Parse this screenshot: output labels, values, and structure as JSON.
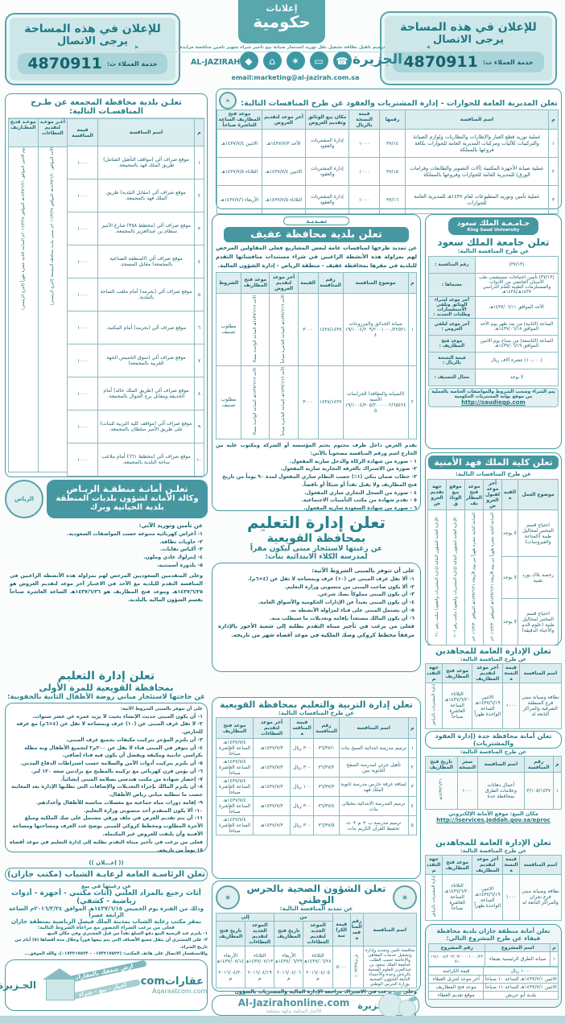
{
  "colors": {
    "accent": "#27818b",
    "teal_fill": "#4697a0",
    "light_teal": "#cde7e9",
    "header_cell": "#dcedef"
  },
  "header": {
    "ad_left": {
      "line1": "للإعلان في هذه المساحة",
      "line2": "يرجى الاتصال",
      "service": "خدمة العملاء ت:",
      "phone": "4870911"
    },
    "ad_right": {
      "line1": "للإعلان في هذه المساحة",
      "line2": "يرجى الاتصال",
      "service": "خدمة العملاء ت:",
      "phone": "4870911"
    },
    "gov_logo": {
      "top": "إعلانات",
      "bottom": "حكومية"
    },
    "services_strip": "ترميم تأهيل نظافة تشغيل نقل توريد استثمار صيانة   بيع تأجير شراء تجهيز تأمين مناقصة مزايدة",
    "email": "email:marketing@al-jazirah.com.sa",
    "brand_en": "AL-JAZIRAH",
    "brand_ar": "الجزيرة"
  },
  "passports": {
    "title": "تعلن المديرية العامة للجوازات - إدارة المشتريات والعقود عن طرح المنافسات التالية:",
    "headers": [
      "م",
      "اسم المنافسة",
      "رقمها",
      "قيمة النسخة بالريال",
      "مكان بيع الوثائق وتقديم العروض",
      "آخر موعد لتقديم العروض",
      "موعد فتح المظاريف الساعة العاشرة صباحاً"
    ],
    "rows": [
      {
        "no": "١",
        "name": "عملية توريد قطع الغيار والإطارات والبطاريات ولوازم الصيانة والتركيبات للآليات ومركبات المديرية العامة للجوازات بكافة فروعها بالمملكة",
        "num": "٣٧/١٤",
        "price": "١٠٠٠",
        "place": "إدارة المشتريات والعقود",
        "deadline": "الأحد ١٤٣٧/٧/٣هـ",
        "opening": "الاثنين ١٤٣٧/٧/٤هـ"
      },
      {
        "no": "٢",
        "name": "عملية صيانة الأجهزة المكتبية (آلات التصوير والطابعات وفرامات الورق) للمديرية العامة للجوازات وفروعها بالمملكة",
        "num": "٣٧/١٥",
        "price": "١٠٠٠",
        "place": "إدارة المشتريات والعقود",
        "deadline": "الاثنين ١٤٣٧/٧/٤هـ",
        "opening": "الثلاثاء ١٤٣٧/٧/٥هـ"
      },
      {
        "no": "٣",
        "name": "عملية تأمين وتوريد المطبوعات لعام ١٤٣٧هـ للمديرية العامة للجوازات",
        "num": "٣٧/١٦",
        "price": "١٠٠٠",
        "place": "إدارة المشتريات والعقود",
        "deadline": "الثلاثاء ١٤٣٧/٧/٥هـ",
        "opening": "الأربعاء ١٤٣٧/٧/٦هـ"
      }
    ]
  },
  "majmaah": {
    "title": "تعلـن بلدية محافظة المجمعة عن طـرح المنافسـات التالية:",
    "headers": [
      "م",
      "اسم المنافسة",
      "قيمة المنافسة",
      "آخـر موعـد لتقديم العطاءات",
      "موعـد فتـح المظـاريف"
    ],
    "rows": [
      {
        "no": "١",
        "name": "موقع صراف آلي (مواقف التأهيل الشامل) طريق الملك فهد بالمجمعة.",
        "price": "١٠٠٠"
      },
      {
        "no": "٢",
        "name": "موقع صراف آلي (مقابل البلدية) طريق الملك فهد بالمجمعة.",
        "price": "١٠٠٠"
      },
      {
        "no": "٣",
        "name": "موقع صراف آلي (مخطط ٣٥٨) شارع الأمير سطام بن عبدالعزيز بالمجمعة.",
        "price": "١٠٠٠"
      },
      {
        "no": "٤",
        "name": "موقع صراف آلي (المنطقة الصناعية بالمجمعة) مقابل المسجد.",
        "price": "١٠٠٠"
      },
      {
        "no": "٥",
        "name": "موقع صراف آلي (بحرمه) أمام ملعب الساحة بالبلدية.",
        "price": "١٠٠٠"
      },
      {
        "no": "٦",
        "name": "موقع صراف آلي (بحرمه) أمام المكتبة.",
        "price": "١٠٠٠"
      },
      {
        "no": "٧",
        "name": "موقع صراف آلي (سوق الخميس الجهة الغربية بالمجمعة)",
        "price": "١٠٠٠"
      },
      {
        "no": "٨",
        "name": "موقع صراف آلي (طريق الملك خالد) أمام الحديقة ومقابل برج الجوال بالمجمعة.",
        "price": "١٠٠٠"
      },
      {
        "no": "٩",
        "name": "موقع صراف آلي (مواقف كلية التربية للبنات) على طريق الأمير سلطان بالمجمعة.",
        "price": "١٠٠٠"
      },
      {
        "no": "١٠",
        "name": "موقع صراف آلي (مخطط ٦٦١) أمام ملاعب ساحة البلدية بالمجمعة.",
        "price": "١٠٠٠"
      }
    ],
    "deadline_note": "الأحد الموافق ١٤٣٧/٦/٢٠هـ الموافق ٢٠١٦/٣/٢٧م بمبنى بلدية محافظة المجمعة (البرج الرئيسي)",
    "opening_note": "يوم الاثنين الموافق ١٤٣٧/٦/٢١هـ الموافق ٢٠١٦/٣/٢٨م الساعة الثانية عشرة ظهراً (البرج الرئيسي)"
  },
  "riyadh": {
    "title1": "تعلـن أمانـة منطقـة الريـاض",
    "title2": "وكالة الأمانة لشؤون بلديات المنطقة",
    "title3": "بلدية الحيانية وبرك",
    "logo_text": "الرياض",
    "intro": "عن تأمين وتوريد الآتي:",
    "items": [
      "١- أغراض كهربائية متنوعة حسب المواصفات السعودية.",
      "٢- حاويات نظافة.",
      "٣- أكياس نفايات.",
      "٤- إنترلوك عادي وملون.",
      "٥- بلدورة أسمنتية."
    ],
    "footer": "وعلى المتقدمين السعوديين المرخص لهم بمزاولة هذه الأنشطة الراغبين في المنافسة التقدم للبلدية مع الأخذ في الاعتبار آخر موعد لتقديم العروض هو ١٤٣٧/٦/٢٥هـ وموعد فتح المظاريف هو ١٤٣٧/٦/٢٦هـ الساعة العاشرة صباحاً بقسم الشؤون المالية بالبلدية."
  },
  "edu_first": {
    "title1": "تعلن إدارة التعليم",
    "title2": "بمحافظة القويعية للمرة الأولى",
    "sub": "عن حاجتها لاستئجار مباني روضة الأطفال الثانية بالجفونية:",
    "intro": "على أن تتوفر بالمبنى الشروط الآتية:",
    "items": [
      "١- أن يكون المبنى حديث الإنشاء بحيث لا يزيد عمره عن عشر سنوات.",
      "٢- لا تقل غرف المبنى عن (١٠) غرف وبمساحة لا تقل عن (٤×٦م) مع غرفة للحارس.",
      "٣- أن يلتزم المؤجر بتركيب مكيفات بجميع غرف المبنى.",
      "٤- أن يتوفر في المبنى فناء لا يقل عن ٢٠٠م٢ لتجميع الأطفال وبه مظلة بكراسي جانبية ومكيفة ويفضل أن يكون فيه فناء إضافي.",
      "٥- أن يلتزم بتركيب أدوات الأمن والسلامة حسب اشتراطات الدفاع المدني.",
      "٦- أن يؤمن فرن كهربائي مع تركيبه بالمطبخ مع برادتين سعة ١٢٠ لتر.",
      "٧- إحضار شهادة من مكتب هندسي بسلامة المبنى إنشائياً.",
      "٨- أن يلتزم المالك بإجراء التعديلات والإضافات التي تطلبها الإدارة بعد المعاينة حسب ما تتطلبه مباني رياض الأطفال.",
      "٩- إقامة دورات مياه جماعية مع مغسلات مناسبة للأطفال وأعدادهم.",
      "١٠- ألا يكون المتقدم أحد منسوبي وزارة التعليم.",
      "١١- أن يتم تقديم العرض في ملف ورقي مشتمل على صك الملكية ومبلغ الأجرة المطلوب ومخطط كروكي للمبنى يوضح عدد الغرف ومساحتها ومساحة الأفنية وأن يلتفت للعروض غير المكتملة."
    ],
    "footer": "فعلى من يرغب في تأجير مبناه التقدم بطلبه إلى إدارة التعليم في موعد أقصاه ١٥ يوماً من تاريخه."
  },
  "i3lan": "(( إعـــلان ))",
  "youth": {
    "title": "تعلن الرئاسـة العامة لرعايـة الشباب (مكتب جازان)",
    "sub": "عن رغبتها في بيع",
    "big": "أثاث رجيع بالمزاد العلني (أثاث مكتبي - أجهزة - أدوات رياضية - كشفي)",
    "line1": "وذلك من الفترة يوم الخميس ١٤٣٧/٦/١٥هـ الموافق ٢٠١٦/٣/٢٤م الساعة الرابعة عصراً",
    "line2": "بمقر مكتب رعاية الشباب بمدينة الملك فيصل الرياضية بمنطقة جازان",
    "line3": "فعلى من يرغب الشراء الحضور مع مراعاة الشروط التالية:",
    "c1": "١- يلتزم عند الرسية البيع دفع المبلغ نقداً من قبل المشتري وفي مكان البيع.",
    "c2": "٢- على المشتري أن ينقل جميع الأصناف التي يتم بيعها فوراً وخلال مدة أقصاها (٥) أيام من تاريخ الشراء.",
    "c3": "وللاستفسار الاتصال على هاتف المكتب: (٠١٧٣٢١٧٥٢٢ - ٠١٧٣٢١٧٥٢٣)،   والله الموفق..."
  },
  "aqaraat": {
    "brand": "عقاراتcom",
    "url": "Aqaraatcom.com",
    "tag1": "ارضِ شغفك بالعقارات",
    "tag2": "أخبار - بيع - شراء",
    "jazirah": "الجـزيرة"
  },
  "afif": {
    "ribbon": "تمـديـد",
    "title": "تعلن بلدية محافظة عفيف",
    "intro": "عن تمديد طرحها لمنافسات عامة لبعض المشاريع فعلى المقاولين المرخص لهم بمزاولة هذه الأنشطة الراغبين في شراء مستندات منافساتها التقدم للبلدية في مقرها بمحافظة عفيف - منطقة الرياض - إدارة الشؤون المالية.",
    "headers": [
      "م",
      "موضوع المنافسة",
      "رقم المنافسة",
      "القيمة",
      "آخر موعد لتقديم العروض",
      "موعد فتح المظاريف",
      "الشروط"
    ],
    "rows": [
      {
        "no": "١",
        "subject": "صيانة الحدائق والمزروعات ١٩/١٠٠٤/٢٠٩/٢٠٠١٠٠٠/٢٢٥٢١٤",
        "num": "١٤٣٨/١٤٣٧",
        "value": "٣٠٠٠",
        "deadline": "الأحد ١٤٣٧/٦/١٩هـ الساعة العاشرة صباحاً",
        "opening": "الأحد ١٤٣٧/٦/١٩هـ الساعة الواحدة مساءً",
        "terms": "مطلوب تصنيف"
      },
      {
        "no": "٢",
        "subject": "(الصيانة والنظافة) الحراسات الأمنية ١٩/١٠٠٤/٢٠٥/٢٠٠٠٠٠٢/٦٥٤٢٤٥",
        "num": "١٤٣٨/١٤٣٧",
        "value": "٣٠٠٠",
        "deadline": "الأحد ١٤٣٧/٦/١٩هـ الساعة العاشرة صباحاً",
        "opening": "الأحد ١٤٣٧/٦/١٩هـ الساعة الواحدة مساءً",
        "terms": "مطلوب تصنيف"
      }
    ],
    "cond_intro": "يقدم العرض داخل ظرف مختوم بختم المؤسسة أو الشركة ومكتوب عليه من الخارج اسم ورقم المنافسة مصحوباً بالآتي:",
    "conditions": [
      "١ - صورة من شهادة الزكاة والدخل سارية المفعول.",
      "٢- صورة من الاشتراك بالغرفة التجارية سارية المفعول.",
      "٣- خطاب ضمان بنكي (١٪) حسب النظام ساري المفعول لمدة ٩٠ يوماً من تاريخ فتح المظاريف ولا يقبل نقداً أو شيكاً أو ناقصاً.",
      "٤ - صورة من السجل التجاري ساري المفعول.",
      "٥ - تقدم شهادة من مكتب التأمينات الاجتماعية.",
      "٦ - صورة من شهادة السعودة سارية المفعول."
    ]
  },
  "edu_taleem": {
    "title1": "تعلن إدارة التعليم",
    "title2": "بمحافظة القويعية",
    "sub1": "عن رغبتها لاستئجار مبنى ليكون مقراً",
    "sub2": "لمدرسة الكلاء الابتدائية بنات:",
    "intro": "على أن تتوفر بالمبنى الشروط الآتية:",
    "items": [
      "١- ألا تقل غرف المبنى عن (١٠) غرف وبمساحة لا تقل عن (٤×٦م).",
      "٢- ألا يكون صاحب المبنى من منسوبي وزارة التعليم.",
      "٣- أن يكون المبنى مملوكاً بصك شرعي.",
      "٤- أن يكون المبنى بعيداً عن الإدارات الحكومية والأسواق العامة.",
      "٥- أن يشتمل المبنى على فناء لمزاولة الأنشطة به.",
      "٦- أن يكون المالك مستعداً بإقامة وتعديلات ما سيطلب منه."
    ],
    "footer": "فعلى من يرغب في تأجير مبناه التقدم بطلبه إلى شعبة الأجور بالإدارة مرفقاً مخطط كروكي وصك الملكية في موعد أقصاه شهر من تاريخه."
  },
  "tarbiya": {
    "title": "تعلن إدارة التربية والتعليم بمحافظة القويعية",
    "sub": "عن طرح المنافسات التالية:",
    "headers": [
      "م",
      "اسم المنافسة",
      "رقم المنافسة",
      "قيمة المنافسة",
      "آخر موعد لتقديم العطاءات",
      "موعد فتح المظاريف"
    ],
    "rows": [
      {
        "no": "١",
        "name": "ترميم مدرسة ابتدائية السيح بنات",
        "num": "٣٦/٣٧/١",
        "price": "٣٠٠ ريال",
        "deadline": "١٤٣٧/٧/٣هـ",
        "opening": "١٤٣٧/٧/٤هـ الساعة العاشرة صباحاً"
      },
      {
        "no": "٢",
        "name": "تأهيل جزئي لمدرسة الصفح الثانوية بنين",
        "num": "٣٦/٣٧/٢",
        "price": "٣٠٠ ريال",
        "deadline": "١٤٣٧/٧/٣هـ",
        "opening": "١٤٣٧/٧/٤هـ الساعة العاشرة صباحاً"
      },
      {
        "no": "٣",
        "name": "إضافة غرفة حارس مدرسة ثانوية الملك فهد",
        "num": "٣٦/٣٧/٣",
        "price": "١٠٠ ريال",
        "deadline": "١٤٣٧/٧/٣هـ",
        "opening": "١٤٣٧/٧/٤هـ الساعة العاشرة صباحاً"
      },
      {
        "no": "٤",
        "name": "ترميم المدرسة الابتدائية بنخيلان بنات",
        "num": "٣٦/٣٧/٤",
        "price": "٣٠٠ ريال",
        "deadline": "١٤٣٧/٧/٣هـ",
        "opening": "١٤٣٧/٧/٤هـ الساعة العاشرة صباحاً"
      },
      {
        "no": "٥",
        "name": "ترميم مدرسة ب + م + ث تحفيظ القرآن الكريم بنات",
        "num": "٣٦/٣٧/٥",
        "price": "٣٠٠ ريال",
        "deadline": "١٤٣٧/٧/٣هـ",
        "opening": "١٤٣٧/٧/٤هـ الساعة العاشرة صباحاً"
      }
    ]
  },
  "health": {
    "title": "تعلن الشؤون الصحية بالحرس الوطني",
    "sub": "عن تمديد المنافسة التالية:",
    "h_name": "اسم المنافسة",
    "h_num": "رقم المنافسة",
    "h_price": "قيمة الكراسة",
    "h_from": "من",
    "h_to": "إلى",
    "h_submit": "الموعد الجديد لتقديم العطاءات",
    "h_open": "تاريخ فتح المظاريف",
    "row": {
      "name": "مناقصة تأمين وتجديد وإدارة وتشغيل خدمات المقاهي والإعاشة حسب الطلب لجامعة الملك سعود بن عبدالعزيز للعلوم الصحية بالرياض وجدة والأحساء التابعة للشؤون الصحية بوزارة الحرس الوطني",
      "num": "ق.م/١٠٦٣/٣٧",
      "price": "٥٠٠٠",
      "from_submit": "الثلاثاء ١٤٣٧/٠٦/٢٨هـ ٢٠١٦/٠٤/٠٥م",
      "from_open": "الأربعاء ١٤٣٧/٠٦/٢٩هـ ٢٠١٦/٠٤/٠٦م",
      "to_submit": "الثلاثاء ١٤٣٧/٠٧/١٣هـ ٢٠١٦/٠٤/١٩م",
      "to_open": "الأربعاء ١٤٣٧/٠٧/١٤هـ ٢٠١٦/٠٤/٢٠م"
    },
    "notes": [
      "وعلى من يرغب في الاشتراك مراجعة الإدارة المالية والمشتريات بالشؤون الصحية بمدينة الملك عبدالعزيز الطبية بمنطقة مكة المكرمة جدة والرياض وإحضار المستندات والوثائق التالية:",
      "١- تفويض رسمي من الشركة / المؤسسة لاستلام كراسة الشروط والمواصفات.    ٢- وصل الدفع البنكي يوضح سداد قيمة كراسة المنافسة مرفقاً بالمستندات.",
      "٣- صورة من السجل التجاري ساري المفعول.    وللاستفسار يرجى الاتصال على هاتف رقم ٠١/٨٠١٤٨٥٣ - ٠١/٨٠١٤٨٠٦"
    ]
  },
  "jz_online": {
    "url": "Al-Jazirahonline.com",
    "tag": "الأخبار المحلية بنكهة مختلفة",
    "jazirah": "الجـزيرة"
  },
  "ksu": {
    "logo_ar": "جـامـعـة الملك سعود",
    "logo_en": "King Saud University",
    "title": "تعلن جامعة الملك سعود",
    "sub": "عن طرح المنافسة التالية:",
    "rows": [
      {
        "label": "رقم المنافسة :",
        "value": "(٣٧/١٣)"
      },
      {
        "label": "مسماها :",
        "value": "(٣٧/١٣) تأمين احتياجات مستشفى طب الأسنان الجامعي من الأدوات والمستلزمات الطبية للعام الدراسي ١٤٣٧هـ/١٤٣٨هـ"
      },
      {
        "label": "آخر موعد لشراء الوثائق وتلقي الاستفسارات وطلبات التمديد :",
        "value": "الأحد الموافق ١٤٣٧/٠٦/١١هـ"
      },
      {
        "label": "آخر موعد لتلقي العروض :",
        "value": "الساعة (الثانية) من بعد ظهر يوم الأحد الموافق ١٤٣٧/٠٦/١٨هـ"
      },
      {
        "label": "موعد فتح المظاريف :",
        "value": "الساعة (التاسعة) من صباح يوم الاثنين الموافق ١٤٣٧/٠٦/١٩هـ"
      },
      {
        "label": "قيمة النسخة بالريال :",
        "value": "(١٠٫٠٠٠) عشرة آلاف ريال"
      },
      {
        "label": "مجال التصنيف :",
        "value": "لا يوجد"
      }
    ],
    "footer1": "يتم الشراء وسحب الشروط والمواصفات الخاصة بالعملية",
    "footer2": "من موقع بوابة المشتريات الحكومية",
    "link": "http://saudiegp.com"
  },
  "kfsc": {
    "title": "تعلن كلية الملك فهد الأمنية",
    "sub": "عن طرح المنافسات التالية:",
    "headers": [
      "موضوع العمل",
      "القيمة",
      "آخر موعد لقبول العروض",
      "موعد فتح المظاريف",
      "موقع بيع الوثائق",
      "جهة تقديم العروض"
    ],
    "rows": [
      {
        "subject": "احتياج قسم المختبر لمحاليل طبية (المناعة والفيروسات)",
        "value": "لا يوجد"
      },
      {
        "subject": "رخصة بلاك بورد تقنية",
        "value": "لا يوجد"
      },
      {
        "subject": "احتياج قسم المختبر لمحاليل طبية (علوم الدم والأحياء الدقيقة)",
        "value": "لا يوجد"
      }
    ],
    "deadline": "الساعة الثانية عشرة ظهراً من يوم الأربعاء ١٤٣٧/٦/٢١هـ الموافق ٢٠١٦/٣/٣٠م",
    "opening": "الساعة الثانية عشرة ظهراً من يوم الأربعاء ١٤٣٧/٦/٢١هـ الموافق ٢٠١٦/٣/٣٠م",
    "docs": "الإدارة العامة للشؤون المالية (إدارة المشتريات والعقود) مكتب رقم ٢٠٦",
    "submit": "الإدارة العامة للشؤون المالية (إدارة المشتريات والعقود) مكتب رقم ٢١٠"
  },
  "muj1": {
    "title": "تعلن الإدارة العامة للمجاهدين",
    "sub": "عن طرح المنافسة التالية:",
    "headers": [
      "اسم المنافسة",
      "قيمة النسخة",
      "آخر موعد لتقديم المظاريف",
      "موعد فتح المظاريف",
      "جهة التقديم"
    ],
    "row": {
      "name": "نظافة وصيانة مبنى فرع المنطقة الشرقية والمراكز التابعة له",
      "price": "١٠٠٠",
      "deadline": "الاثنين ١٤٣٧/٦/١٩هـ الساعة الواحدة ظهراً",
      "opening": "الثلاثاء ١٤٣٧/٦/٢٠هـ الساعة العاشرة صباحاً",
      "place": "إدارة المشتريات بالرياض"
    }
  },
  "jeddah": {
    "title": "تعلن أمانة محافظة جدة (إدارة العقود والمشتريات)",
    "sub": "عن طرح المنافسة التالية:",
    "headers": [
      "م",
      "رقم المنافسة",
      "اسم المنافسة",
      "سعر النسخة",
      "تاريخ فتح المظاريف"
    ],
    "row": {
      "no": "١",
      "num": "٣/١٠٥/١٤٣٧",
      "name": "أعمال دهانات وعلامات الطرق بمحافظة جدة",
      "price": "١٠٠٠",
      "date": "١٤٣٧/٦/٢٦هـ"
    },
    "footer": "مكان البيع: موقع الأمانة الإلكتروني",
    "link": "http://iservices.jeddah.gov.sa/eproc"
  },
  "muj2": {
    "title": "تعلن الإدارة العامة للمجاهدين",
    "sub": "عن طرح المنافصة التالية:",
    "headers": [
      "اسم المنافسة",
      "قيمة النسخة",
      "آخر موعد لتقديم المظاريف",
      "موعد فتح المظاريف",
      "جهة التقديم"
    ],
    "row": {
      "name": "نظافة وصيانة مبنى فرع نجران والمراكز التابعة له",
      "price": "١٠٠٠",
      "deadline": "الاثنين ١٤٣٧/٦/١٩هـ الساعة الواحدة ظهراً",
      "opening": "الثلاثاء ١٤٣٧/٦/٢٠هـ الساعة العاشرة صباحاً",
      "place": "إدارة المشتريات بالرياض"
    }
  },
  "fayfa": {
    "title": "تعلن أمانة منطقة جازان بلدية محافظة فيفاء عن طرح المشروع التالي:",
    "headers": [
      "م",
      "اسم المشروع",
      "رقم المشروع"
    ],
    "row": {
      "no": "١",
      "name": "صيانة الطرق الرئيسية بفيفاء",
      "num": "١٩/١٠٠٤/٢٠٣/٠٣/٠٠٠٠١٠٠٠/٢٢٥١"
    },
    "details": [
      [
        "قيمة الكراسة",
        "١٠٠٠ ريال"
      ],
      [
        "آخر موعد لتنزيل العطاء",
        "الاثنين ١٤٣٧/٧/١هـ الساعة ١٠ صباحاً"
      ],
      [
        "موعد فتح المظاريف",
        "الاثنين ١٤٣٧/٧/١هـ الساعة ١١ صباحاً"
      ],
      [
        "موقع تقديم العطاء",
        "بلدية أبو عريش"
      ]
    ]
  }
}
